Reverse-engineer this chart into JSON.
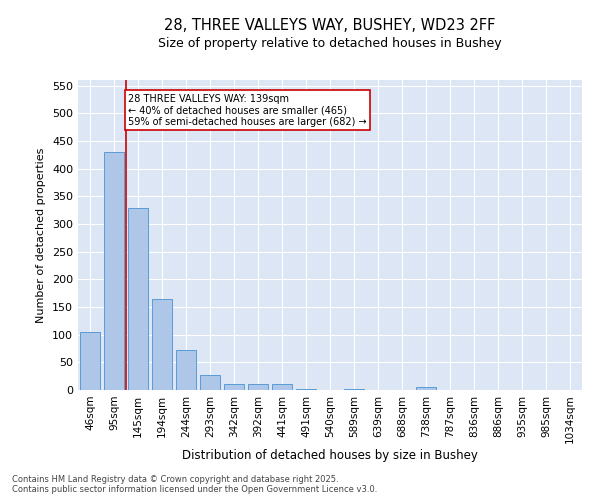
{
  "title1": "28, THREE VALLEYS WAY, BUSHEY, WD23 2FF",
  "title2": "Size of property relative to detached houses in Bushey",
  "xlabel": "Distribution of detached houses by size in Bushey",
  "ylabel": "Number of detached properties",
  "categories": [
    "46sqm",
    "95sqm",
    "145sqm",
    "194sqm",
    "244sqm",
    "293sqm",
    "342sqm",
    "392sqm",
    "441sqm",
    "491sqm",
    "540sqm",
    "589sqm",
    "639sqm",
    "688sqm",
    "738sqm",
    "787sqm",
    "836sqm",
    "886sqm",
    "935sqm",
    "985sqm",
    "1034sqm"
  ],
  "values": [
    105,
    430,
    328,
    165,
    73,
    28,
    10,
    11,
    10,
    2,
    0,
    2,
    0,
    0,
    5,
    0,
    0,
    0,
    0,
    0,
    0
  ],
  "bar_color": "#aec6e8",
  "bar_edge_color": "#5b9bd5",
  "bg_color": "#dce6f5",
  "grid_color": "#ffffff",
  "vline_color": "#cc0000",
  "vline_x": 1.5,
  "annotation_text": "28 THREE VALLEYS WAY: 139sqm\n← 40% of detached houses are smaller (465)\n59% of semi-detached houses are larger (682) →",
  "ylim": [
    0,
    560
  ],
  "yticks": [
    0,
    50,
    100,
    150,
    200,
    250,
    300,
    350,
    400,
    450,
    500,
    550
  ],
  "footer1": "Contains HM Land Registry data © Crown copyright and database right 2025.",
  "footer2": "Contains public sector information licensed under the Open Government Licence v3.0."
}
